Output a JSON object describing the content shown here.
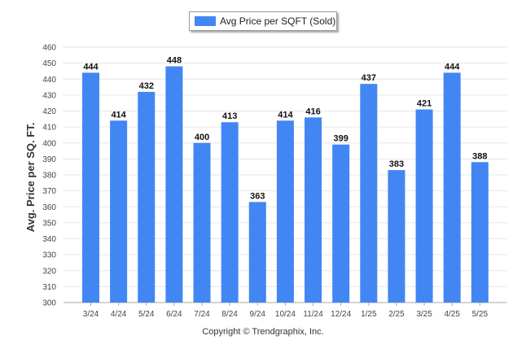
{
  "chart_data": {
    "type": "bar",
    "legend": [
      "Avg Price per SQFT (Sold)"
    ],
    "legend_position": "top-center",
    "ylabel": "Avg. Price per SQ. FT.",
    "xlabel": "",
    "ylim": [
      300,
      460
    ],
    "ytick_step": 10,
    "grid": true,
    "categories": [
      "3/24",
      "4/24",
      "5/24",
      "6/24",
      "7/24",
      "8/24",
      "9/24",
      "10/24",
      "11/24",
      "12/24",
      "1/25",
      "2/25",
      "3/25",
      "4/25",
      "5/25"
    ],
    "series": [
      {
        "name": "Avg Price per SQFT (Sold)",
        "values": [
          444,
          414,
          432,
          448,
          400,
          413,
          363,
          414,
          416,
          399,
          437,
          383,
          421,
          444,
          388
        ]
      }
    ],
    "colors": {
      "bar": "#4286f4",
      "grid": "#e6e6e6",
      "axis": "#aaaaaa"
    }
  },
  "footer": {
    "copyright": "Copyright © Trendgraphix, Inc."
  }
}
